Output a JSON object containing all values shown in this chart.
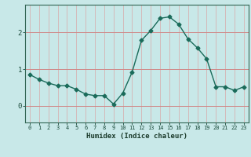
{
  "x": [
    0,
    1,
    2,
    3,
    4,
    5,
    6,
    7,
    8,
    9,
    10,
    11,
    12,
    13,
    14,
    15,
    16,
    17,
    18,
    19,
    20,
    21,
    22,
    23
  ],
  "y": [
    0.85,
    0.72,
    0.62,
    0.55,
    0.55,
    0.45,
    0.32,
    0.28,
    0.28,
    0.05,
    0.35,
    0.92,
    1.78,
    2.05,
    2.38,
    2.42,
    2.22,
    1.82,
    1.58,
    1.28,
    0.52,
    0.52,
    0.42,
    0.52
  ],
  "xlabel": "Humidex (Indice chaleur)",
  "xlim": [
    -0.5,
    23.5
  ],
  "ylim": [
    -0.45,
    2.75
  ],
  "yticks": [
    0,
    1,
    2
  ],
  "xticks": [
    0,
    1,
    2,
    3,
    4,
    5,
    6,
    7,
    8,
    9,
    10,
    11,
    12,
    13,
    14,
    15,
    16,
    17,
    18,
    19,
    20,
    21,
    22,
    23
  ],
  "bg_color": "#c8e8e8",
  "plot_bg_color": "#c8e8e8",
  "line_color": "#1a6b5a",
  "grid_h_color": "#d08888",
  "grid_v_color": "#d8a8a8",
  "axis_color": "#336655",
  "tick_label_color": "#1a4a3a",
  "xlabel_color": "#1a3a2a",
  "bottom_bar_color": "#5a8a7a",
  "line_width": 1.0,
  "marker": "D",
  "marker_size": 2.5
}
